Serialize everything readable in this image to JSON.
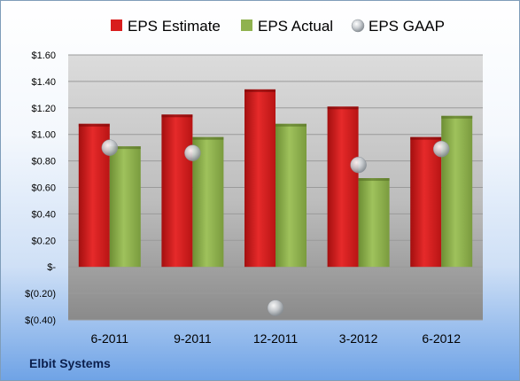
{
  "company": "Elbit Systems",
  "chart_data": {
    "type": "bar",
    "categories": [
      "6-2011",
      "9-2011",
      "12-2011",
      "3-2012",
      "6-2012"
    ],
    "series": [
      {
        "name": "EPS Estimate",
        "kind": "bar",
        "color": "#d81d1d",
        "values": [
          1.08,
          1.15,
          1.34,
          1.21,
          0.98
        ]
      },
      {
        "name": "EPS Actual",
        "kind": "bar",
        "color": "#8fb24f",
        "values": [
          0.91,
          0.98,
          1.08,
          0.67,
          1.14
        ]
      },
      {
        "name": "EPS GAAP",
        "kind": "marker",
        "color": "#b8bec4",
        "values": [
          0.9,
          0.86,
          -0.31,
          0.77,
          0.89
        ]
      }
    ],
    "yticks": [
      "$1.60",
      "$1.40",
      "$1.20",
      "$1.00",
      "$0.80",
      "$0.60",
      "$0.40",
      "$0.20",
      "$-",
      "$(0.20)",
      "$(0.40)"
    ],
    "ylim": [
      -0.4,
      1.6
    ],
    "legend_position": "top",
    "grid": true
  }
}
